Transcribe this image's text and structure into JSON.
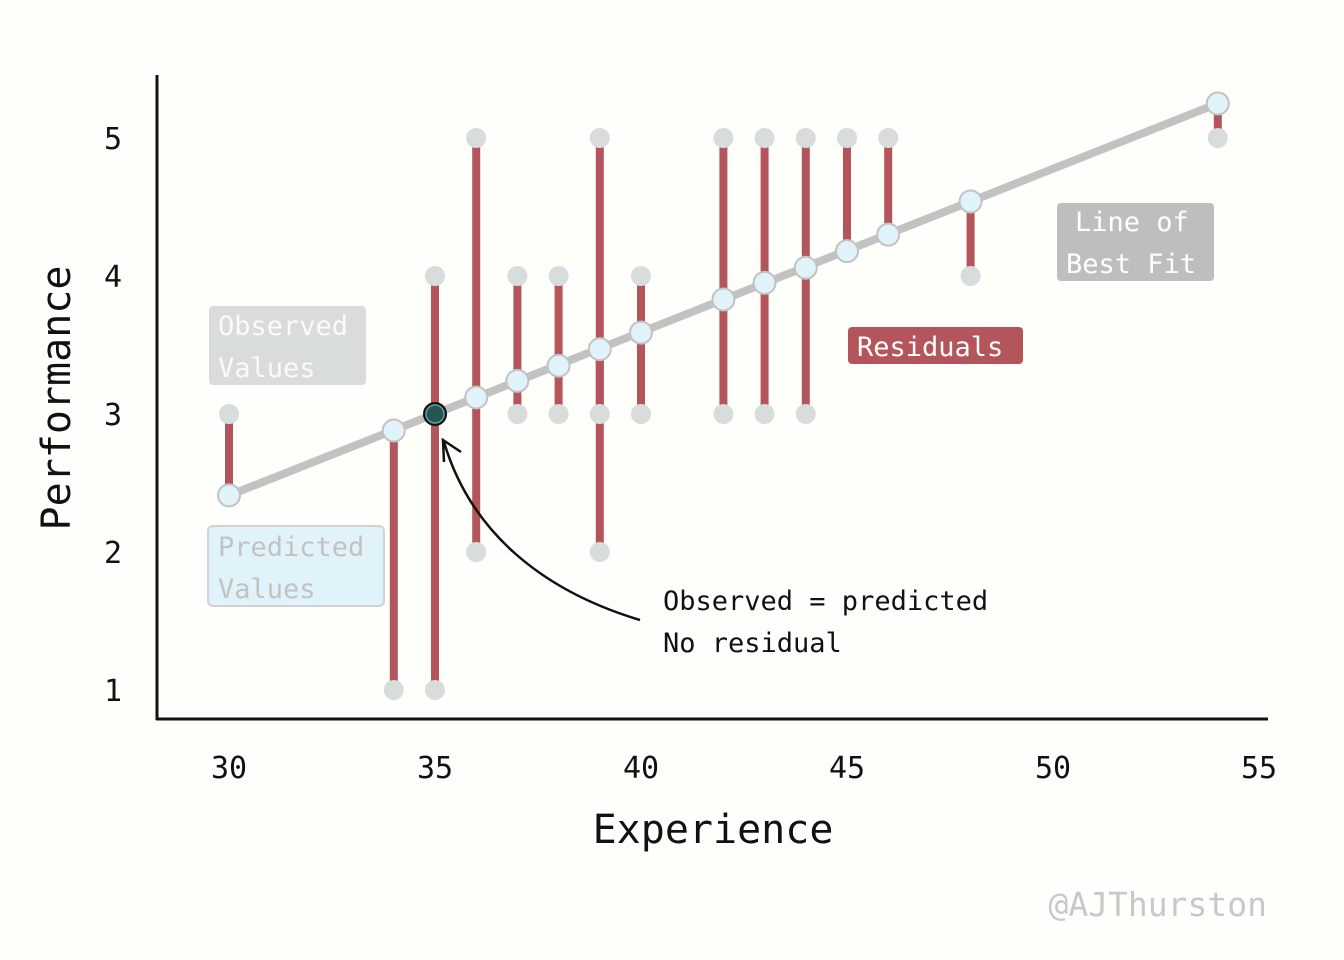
{
  "chart_data": {
    "type": "scatter",
    "title": "",
    "xlabel": "Experience",
    "ylabel": "Performance",
    "xlim": [
      28.3,
      55.2
    ],
    "ylim": [
      0.8,
      5.5
    ],
    "xticks": [
      "30",
      "35",
      "40",
      "45",
      "50",
      "55"
    ],
    "yticks": [
      "1",
      "2",
      "3",
      "4",
      "5"
    ],
    "grid": false,
    "observed": [
      {
        "x": 30,
        "y": 3
      },
      {
        "x": 34,
        "y": 1
      },
      {
        "x": 35,
        "y": 1
      },
      {
        "x": 35,
        "y": 3
      },
      {
        "x": 35,
        "y": 4
      },
      {
        "x": 36,
        "y": 5
      },
      {
        "x": 36,
        "y": 2
      },
      {
        "x": 37,
        "y": 4
      },
      {
        "x": 37,
        "y": 3
      },
      {
        "x": 38,
        "y": 4
      },
      {
        "x": 38,
        "y": 3
      },
      {
        "x": 39,
        "y": 5
      },
      {
        "x": 39,
        "y": 3
      },
      {
        "x": 39,
        "y": 2
      },
      {
        "x": 40,
        "y": 4
      },
      {
        "x": 40,
        "y": 3
      },
      {
        "x": 42,
        "y": 5
      },
      {
        "x": 42,
        "y": 3
      },
      {
        "x": 43,
        "y": 5
      },
      {
        "x": 43,
        "y": 3
      },
      {
        "x": 44,
        "y": 5
      },
      {
        "x": 44,
        "y": 3
      },
      {
        "x": 45,
        "y": 5
      },
      {
        "x": 46,
        "y": 5
      },
      {
        "x": 48,
        "y": 4
      },
      {
        "x": 54,
        "y": 5
      }
    ],
    "predicted": [
      {
        "x": 30,
        "y": 2.41
      },
      {
        "x": 34,
        "y": 2.88
      },
      {
        "x": 35,
        "y": 3.0
      },
      {
        "x": 36,
        "y": 3.12
      },
      {
        "x": 37,
        "y": 3.24
      },
      {
        "x": 38,
        "y": 3.35
      },
      {
        "x": 39,
        "y": 3.47
      },
      {
        "x": 40,
        "y": 3.59
      },
      {
        "x": 42,
        "y": 3.83
      },
      {
        "x": 43,
        "y": 3.95
      },
      {
        "x": 44,
        "y": 4.06
      },
      {
        "x": 45,
        "y": 4.18
      },
      {
        "x": 46,
        "y": 4.3
      },
      {
        "x": 48,
        "y": 4.54
      },
      {
        "x": 54,
        "y": 5.25
      }
    ],
    "highlight": {
      "x": 35,
      "y": 3
    },
    "legend_labels": {
      "observed": [
        "Observed",
        "Values"
      ],
      "predicted": [
        "Predicted",
        "Values"
      ],
      "residuals": "Residuals",
      "fit": [
        "Line of",
        "Best Fit"
      ]
    },
    "annotation": [
      "Observed = predicted",
      "No residual"
    ],
    "watermark": "@AJThurston",
    "colors": {
      "residual": "#b3555a",
      "observed": "#d8dcdd",
      "predicted_fill": "#e1f3fa",
      "predicted_stroke": "#c2c2c2",
      "fit_line": "#c2c2c2",
      "highlight": "#265653"
    }
  }
}
